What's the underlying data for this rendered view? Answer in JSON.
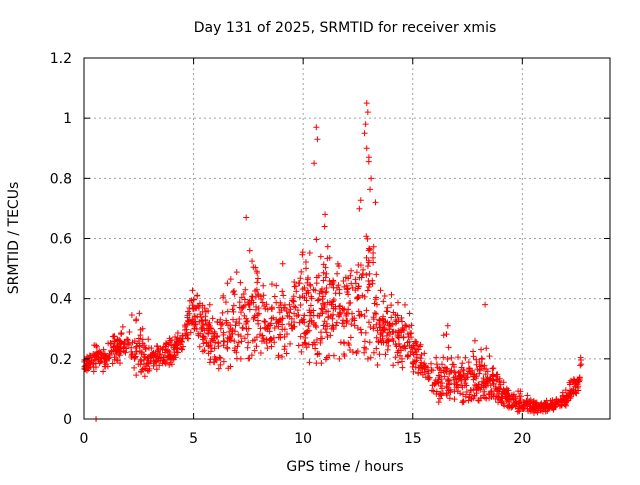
{
  "chart_data": {
    "type": "scatter",
    "title": "Day 131 of 2025, SRMTID for receiver xmis",
    "xlabel": "GPS time / hours",
    "ylabel": "SRMTID / TECUs",
    "xlim": [
      0,
      24
    ],
    "ylim": [
      0,
      1.2
    ],
    "x_ticks": [
      0,
      5,
      10,
      15,
      20
    ],
    "x_tick_labels": [
      "0",
      "5",
      "10",
      "15",
      "20"
    ],
    "y_ticks": [
      0,
      0.2,
      0.4,
      0.6,
      0.8,
      1.0,
      1.2
    ],
    "y_tick_labels": [
      "0",
      "0.2",
      "0.4",
      "0.6",
      "0.8",
      "1",
      "1.2"
    ],
    "grid": true,
    "marker": "+",
    "series": [
      {
        "name": "SRMTID",
        "color": "#ff0000",
        "envelope_hours": [
          0,
          0.5,
          1,
          1.5,
          2,
          2.5,
          3,
          3.5,
          4,
          4.5,
          5,
          5.5,
          6,
          6.5,
          7,
          7.5,
          8,
          8.5,
          9,
          9.5,
          10,
          10.5,
          11,
          11.5,
          12,
          12.5,
          13,
          13.5,
          14,
          14.5,
          15,
          15.5,
          16,
          16.5,
          17,
          17.5,
          18,
          18.5,
          19,
          19.5,
          20,
          20.5,
          21,
          21.5,
          22,
          22.5,
          22.7
        ],
        "envelope_low": [
          0.16,
          0.15,
          0.16,
          0.18,
          0.18,
          0.13,
          0.14,
          0.17,
          0.18,
          0.22,
          0.24,
          0.2,
          0.17,
          0.16,
          0.2,
          0.2,
          0.22,
          0.2,
          0.2,
          0.2,
          0.2,
          0.18,
          0.16,
          0.2,
          0.2,
          0.2,
          0.2,
          0.17,
          0.18,
          0.16,
          0.15,
          0.14,
          0.06,
          0.05,
          0.05,
          0.06,
          0.06,
          0.06,
          0.04,
          0.03,
          0.02,
          0.02,
          0.02,
          0.03,
          0.04,
          0.07,
          0.12
        ],
        "envelope_high": [
          0.22,
          0.25,
          0.24,
          0.3,
          0.34,
          0.36,
          0.26,
          0.26,
          0.27,
          0.32,
          0.44,
          0.42,
          0.34,
          0.45,
          0.5,
          0.58,
          0.52,
          0.48,
          0.52,
          0.55,
          0.64,
          0.6,
          0.7,
          0.55,
          0.62,
          0.68,
          0.98,
          0.46,
          0.42,
          0.4,
          0.34,
          0.22,
          0.2,
          0.3,
          0.22,
          0.24,
          0.28,
          0.22,
          0.15,
          0.12,
          0.1,
          0.07,
          0.06,
          0.07,
          0.1,
          0.17,
          0.22
        ],
        "typical_center": [
          0.18,
          0.2,
          0.2,
          0.24,
          0.26,
          0.22,
          0.2,
          0.22,
          0.22,
          0.27,
          0.36,
          0.3,
          0.24,
          0.28,
          0.3,
          0.33,
          0.34,
          0.3,
          0.34,
          0.36,
          0.38,
          0.34,
          0.36,
          0.32,
          0.36,
          0.4,
          0.45,
          0.3,
          0.3,
          0.28,
          0.24,
          0.17,
          0.12,
          0.13,
          0.12,
          0.12,
          0.13,
          0.12,
          0.09,
          0.06,
          0.05,
          0.04,
          0.04,
          0.05,
          0.06,
          0.11,
          0.17
        ],
        "highlighted_points": [
          {
            "x": 0.55,
            "y": 0.0
          },
          {
            "x": 7.4,
            "y": 0.67
          },
          {
            "x": 10.5,
            "y": 0.85
          },
          {
            "x": 10.6,
            "y": 0.97
          },
          {
            "x": 10.65,
            "y": 0.93
          },
          {
            "x": 11.0,
            "y": 0.68
          },
          {
            "x": 12.9,
            "y": 1.05
          },
          {
            "x": 12.95,
            "y": 1.02
          },
          {
            "x": 12.85,
            "y": 0.98
          },
          {
            "x": 12.8,
            "y": 0.95
          },
          {
            "x": 12.9,
            "y": 0.9
          },
          {
            "x": 13.0,
            "y": 0.87
          },
          {
            "x": 13.1,
            "y": 0.8
          },
          {
            "x": 13.3,
            "y": 0.72
          },
          {
            "x": 16.6,
            "y": 0.31
          },
          {
            "x": 18.3,
            "y": 0.38
          }
        ]
      }
    ]
  }
}
